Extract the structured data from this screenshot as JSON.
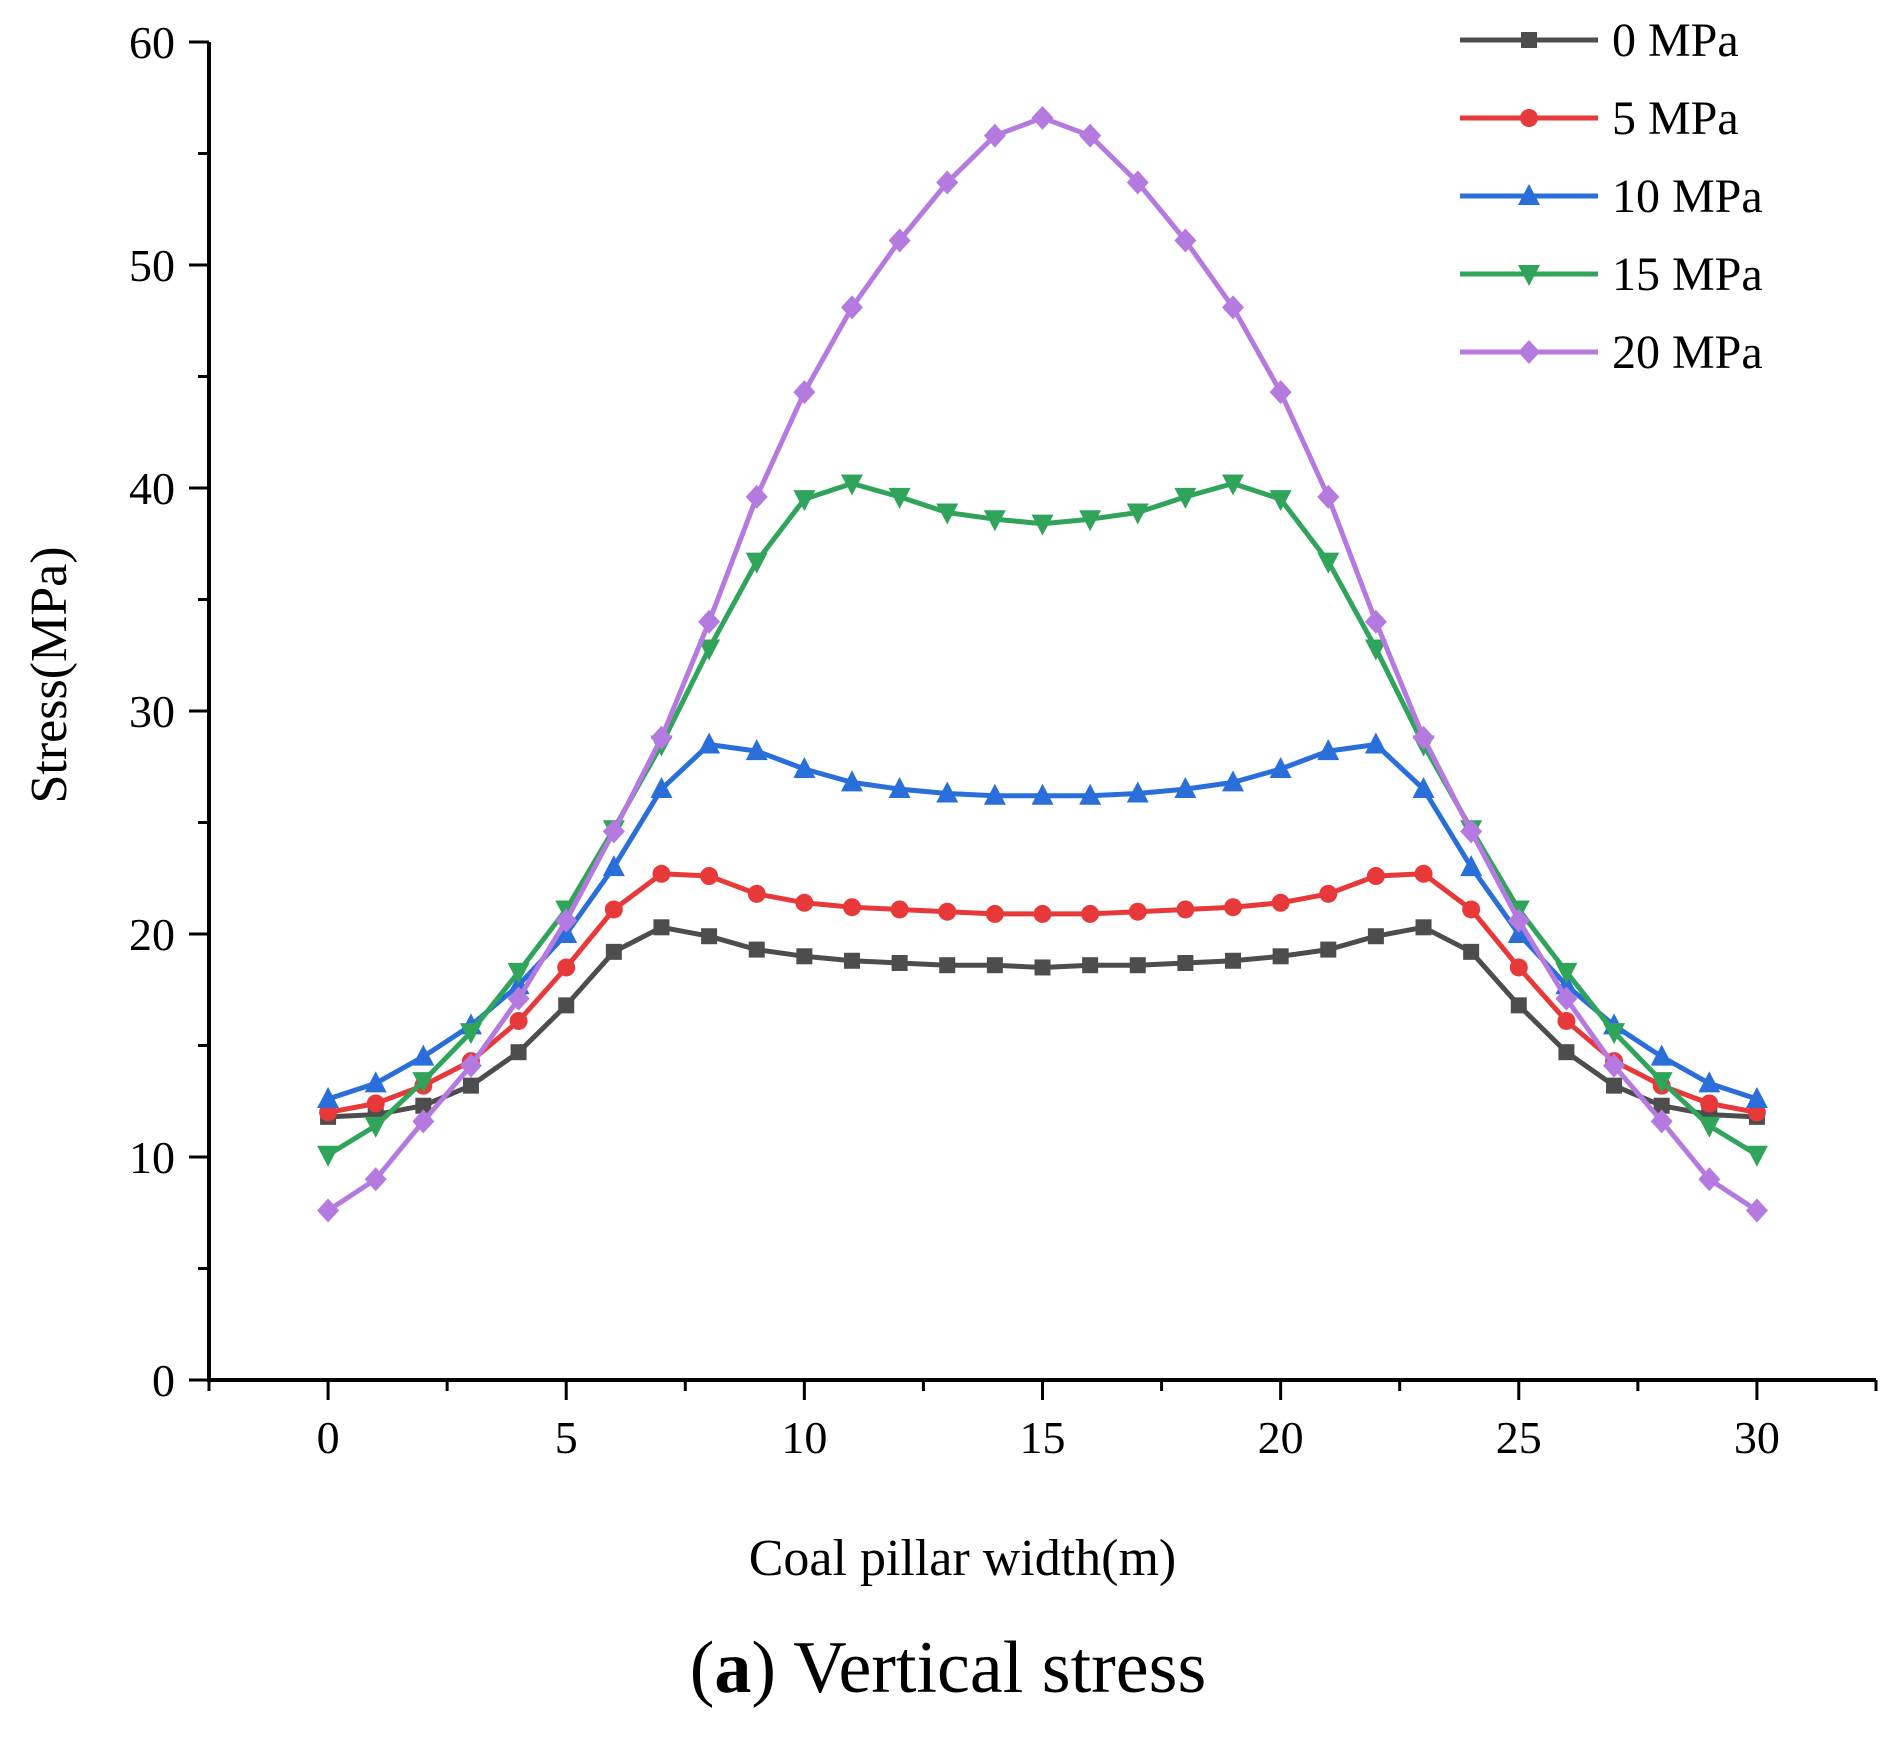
{
  "chart_data": {
    "type": "line",
    "title": "",
    "xlabel": "Coal pillar width(m)",
    "ylabel": "Stress(MPa)",
    "xlim": [
      -2.5,
      32.5
    ],
    "ylim": [
      0,
      60
    ],
    "x_ticks": [
      0,
      5,
      10,
      15,
      20,
      25,
      30
    ],
    "x_tick_labels": [
      "0",
      "5",
      "10",
      "15",
      "20",
      "25",
      "30"
    ],
    "y_ticks": [
      0,
      10,
      20,
      30,
      40,
      50,
      60
    ],
    "y_tick_labels": [
      "0",
      "10",
      "20",
      "30",
      "40",
      "50",
      "60"
    ],
    "grid": false,
    "legend_position": "top-right",
    "x": [
      0,
      1,
      2,
      3,
      4,
      5,
      6,
      7,
      8,
      9,
      10,
      11,
      12,
      13,
      14,
      15,
      16,
      17,
      18,
      19,
      20,
      21,
      22,
      23,
      24,
      25,
      26,
      27,
      28,
      29,
      30
    ],
    "series": [
      {
        "name": "0 MPa",
        "color": "#4d4d4d",
        "marker": "square",
        "values": [
          11.8,
          11.9,
          12.3,
          13.2,
          14.7,
          16.8,
          19.2,
          20.3,
          19.9,
          19.3,
          19.0,
          18.8,
          18.7,
          18.6,
          18.6,
          18.5,
          18.6,
          18.6,
          18.7,
          18.8,
          19.0,
          19.3,
          19.9,
          20.3,
          19.2,
          16.8,
          14.7,
          13.2,
          12.3,
          11.9,
          11.8
        ]
      },
      {
        "name": "5 MPa",
        "color": "#e8393a",
        "marker": "circle",
        "values": [
          12.0,
          12.4,
          13.2,
          14.3,
          16.1,
          18.5,
          21.1,
          22.7,
          22.6,
          21.8,
          21.4,
          21.2,
          21.1,
          21.0,
          20.9,
          20.9,
          20.9,
          21.0,
          21.1,
          21.2,
          21.4,
          21.8,
          22.6,
          22.7,
          21.1,
          18.5,
          16.1,
          14.3,
          13.2,
          12.4,
          12.0
        ]
      },
      {
        "name": "10 MPa",
        "color": "#2a6fd9",
        "marker": "triangle-up",
        "values": [
          12.6,
          13.3,
          14.5,
          15.9,
          17.7,
          20.0,
          23.0,
          26.5,
          28.5,
          28.2,
          27.4,
          26.8,
          26.5,
          26.3,
          26.2,
          26.2,
          26.2,
          26.3,
          26.5,
          26.8,
          27.4,
          28.2,
          28.5,
          26.5,
          23.0,
          20.0,
          17.7,
          15.9,
          14.5,
          13.3,
          12.6
        ]
      },
      {
        "name": "15 MPa",
        "color": "#2fa45a",
        "marker": "triangle-down",
        "values": [
          10.1,
          11.4,
          13.4,
          15.6,
          18.3,
          21.1,
          24.7,
          28.5,
          32.8,
          36.7,
          39.5,
          40.2,
          39.6,
          38.9,
          38.6,
          38.4,
          38.6,
          38.9,
          39.6,
          40.2,
          39.5,
          36.7,
          32.8,
          28.5,
          24.7,
          21.1,
          18.3,
          15.6,
          13.4,
          11.4,
          10.1
        ]
      },
      {
        "name": "20 MPa",
        "color": "#b57ae0",
        "marker": "diamond",
        "values": [
          7.6,
          9.0,
          11.6,
          14.1,
          17.1,
          20.6,
          24.6,
          28.8,
          34.0,
          39.6,
          44.3,
          48.1,
          51.1,
          53.7,
          55.8,
          56.6,
          55.8,
          53.7,
          51.1,
          48.1,
          44.3,
          39.6,
          34.0,
          28.8,
          24.6,
          20.6,
          17.1,
          14.1,
          11.6,
          9.0,
          7.6
        ]
      }
    ]
  },
  "caption": {
    "prefix_open": "(",
    "letter": "a",
    "prefix_close": ")",
    "text": " Vertical stress"
  }
}
